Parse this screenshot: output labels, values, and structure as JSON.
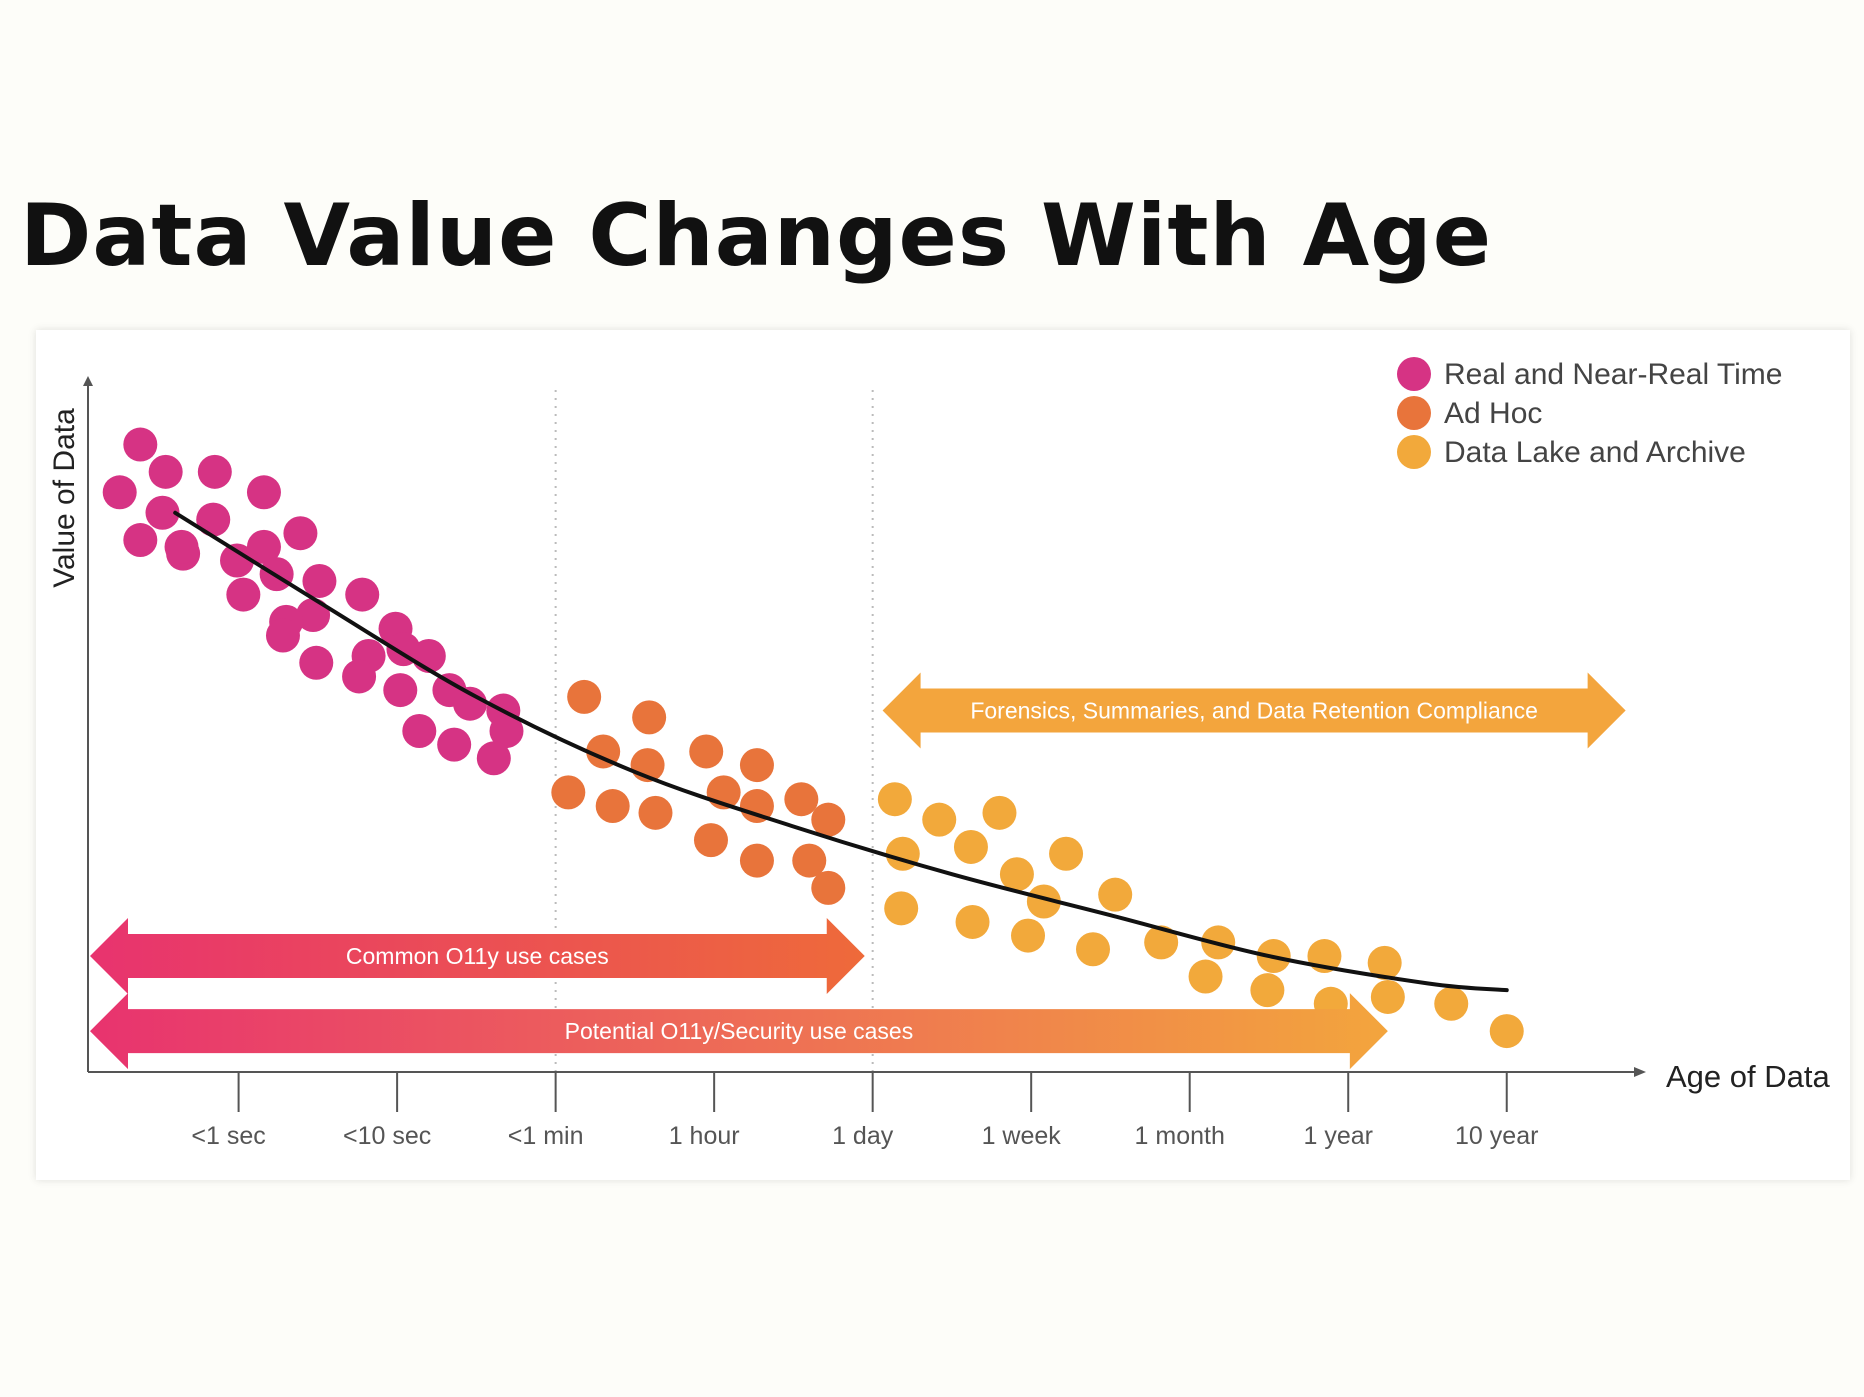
{
  "title": "Data Value Changes With Age",
  "colors": {
    "real_time": "#d63384",
    "ad_hoc": "#e8743b",
    "data_lake": "#f2a93b",
    "pink": "#e8336f",
    "orange_red": "#ee6a3a",
    "amber": "#f3a53d",
    "curve": "#111111",
    "axis": "#555555"
  },
  "chart_data": {
    "type": "scatter",
    "xlabel": "Age of Data",
    "ylabel": "Value of Data",
    "x_categories": [
      "<1 sec",
      "<10 sec",
      "<1 min",
      "1 hour",
      "1 day",
      "1 week",
      "1 month",
      "1 year",
      "10 year"
    ],
    "xlim": [
      -0.95,
      8.5
    ],
    "ylim": [
      0,
      100
    ],
    "grid": false,
    "vertical_reference_lines_at": [
      2,
      4
    ],
    "legend": {
      "placement": "top-right",
      "entries": [
        {
          "label": "Real and Near-Real Time",
          "color": "#d63384"
        },
        {
          "label": "Ad Hoc",
          "color": "#e8743b"
        },
        {
          "label": "Data Lake and Archive",
          "color": "#f2a93b"
        }
      ]
    },
    "series": [
      {
        "name": "Real and Near-Real Time",
        "color": "#d63384",
        "points": [
          [
            -0.62,
            92
          ],
          [
            -0.75,
            85
          ],
          [
            -0.46,
            88
          ],
          [
            -0.15,
            88
          ],
          [
            -0.48,
            82
          ],
          [
            -0.62,
            78
          ],
          [
            -0.35,
            76
          ],
          [
            0.16,
            85
          ],
          [
            -0.16,
            81
          ],
          [
            -0.01,
            75
          ],
          [
            -0.36,
            77
          ],
          [
            0.16,
            77
          ],
          [
            0.39,
            79
          ],
          [
            0.24,
            73
          ],
          [
            0.03,
            70
          ],
          [
            0.47,
            67
          ],
          [
            0.51,
            72
          ],
          [
            0.78,
            70
          ],
          [
            0.3,
            66
          ],
          [
            0.28,
            64
          ],
          [
            0.99,
            65
          ],
          [
            0.82,
            61
          ],
          [
            0.49,
            60
          ],
          [
            1.04,
            62
          ],
          [
            1.2,
            61
          ],
          [
            0.76,
            58
          ],
          [
            1.02,
            56
          ],
          [
            1.33,
            56
          ],
          [
            1.67,
            53
          ],
          [
            1.46,
            54
          ],
          [
            1.69,
            50
          ],
          [
            1.14,
            50
          ],
          [
            1.36,
            48
          ],
          [
            1.61,
            46
          ]
        ]
      },
      {
        "name": "Ad Hoc",
        "color": "#e8743b",
        "points": [
          [
            2.18,
            55
          ],
          [
            2.59,
            52
          ],
          [
            2.3,
            47
          ],
          [
            2.95,
            47
          ],
          [
            2.58,
            45
          ],
          [
            3.27,
            45
          ],
          [
            2.08,
            41
          ],
          [
            3.06,
            41
          ],
          [
            2.36,
            39
          ],
          [
            2.63,
            38
          ],
          [
            3.27,
            39
          ],
          [
            3.55,
            40
          ],
          [
            2.98,
            34
          ],
          [
            3.72,
            37
          ],
          [
            3.27,
            31
          ],
          [
            3.6,
            31
          ],
          [
            3.72,
            27
          ]
        ]
      },
      {
        "name": "Data Lake and Archive",
        "color": "#f2a93b",
        "points": [
          [
            4.14,
            40
          ],
          [
            4.42,
            37
          ],
          [
            4.8,
            38
          ],
          [
            4.19,
            32
          ],
          [
            4.62,
            33
          ],
          [
            4.91,
            29
          ],
          [
            5.22,
            32
          ],
          [
            4.18,
            24
          ],
          [
            4.63,
            22
          ],
          [
            5.08,
            25
          ],
          [
            5.53,
            26
          ],
          [
            4.98,
            20
          ],
          [
            5.39,
            18
          ],
          [
            5.82,
            19
          ],
          [
            6.18,
            19
          ],
          [
            6.53,
            17
          ],
          [
            6.85,
            17
          ],
          [
            7.23,
            16
          ],
          [
            6.1,
            14
          ],
          [
            6.49,
            12
          ],
          [
            6.89,
            10
          ],
          [
            7.25,
            11
          ],
          [
            7.65,
            10
          ],
          [
            8.0,
            6
          ]
        ]
      }
    ],
    "trend_line": {
      "points": [
        [
          -0.4,
          82
        ],
        [
          0.5,
          69
        ],
        [
          1.5,
          55
        ],
        [
          2.5,
          44
        ],
        [
          3.5,
          36
        ],
        [
          4.5,
          29
        ],
        [
          5.5,
          23
        ],
        [
          6.5,
          17
        ],
        [
          7.5,
          13
        ],
        [
          8.0,
          12
        ]
      ]
    },
    "annotations": [
      {
        "label": "Forensics, Summaries, and Data Retention Compliance",
        "from": 4.05,
        "to": 8.75,
        "y": 53,
        "color_from": "#f3a53d",
        "color_to": "#f3a53d"
      },
      {
        "label": "Common O11y use cases",
        "from": -0.95,
        "to": 3.95,
        "y": 17,
        "color_from": "#e8336f",
        "color_to": "#ee6a3a"
      },
      {
        "label": "Potential O11y/Security use cases",
        "from": -0.95,
        "to": 7.25,
        "y": 6,
        "color_from": "#e8336f",
        "color_to": "#f3a53d"
      }
    ]
  }
}
